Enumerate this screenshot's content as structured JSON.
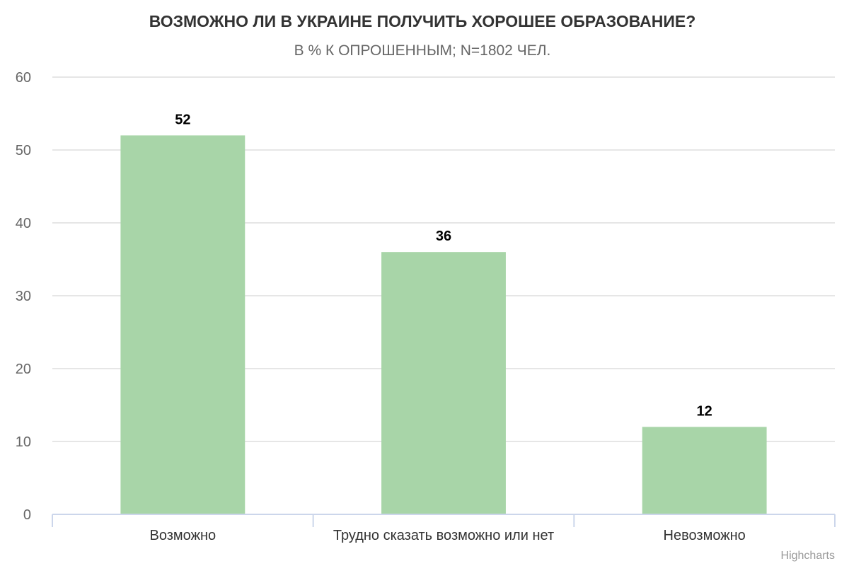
{
  "chart_data": {
    "type": "bar",
    "title": "ВОЗМОЖНО ЛИ В УКРАИНЕ ПОЛУЧИТЬ ХОРОШЕЕ ОБРАЗОВАНИЕ?",
    "subtitle": "В % К ОПРОШЕННЫМ; N=1802 ЧЕЛ.",
    "categories": [
      "Возможно",
      "Трудно сказать возможно или нет",
      "Невозможно"
    ],
    "values": [
      52,
      36,
      12
    ],
    "data_labels": [
      "52",
      "36",
      "12"
    ],
    "ylim": [
      0,
      60
    ],
    "yticks": [
      "0",
      "10",
      "20",
      "30",
      "40",
      "50",
      "60"
    ],
    "ytick_values": [
      0,
      10,
      20,
      30,
      40,
      50,
      60
    ],
    "xlabel": "",
    "ylabel": "",
    "grid": true,
    "legend": "none",
    "bar_color": "#a8d5a8"
  },
  "credits": "Highcharts"
}
